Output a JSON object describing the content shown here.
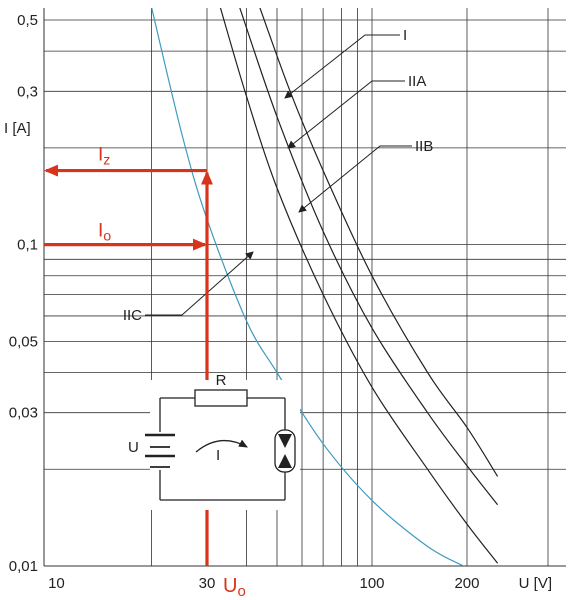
{
  "chart_data": {
    "type": "line",
    "xscale": "log",
    "yscale": "log",
    "xlim": [
      10,
      250
    ],
    "ylim": [
      0.01,
      0.55
    ],
    "xlabel": "U [V]",
    "ylabel": "I [A]",
    "x_ticks": [
      {
        "value": 10,
        "label": "10"
      },
      {
        "value": 30,
        "label": "30"
      },
      {
        "value": 100,
        "label": "100"
      },
      {
        "value": 200,
        "label": "200"
      }
    ],
    "y_ticks": [
      {
        "value": 0.01,
        "label": "0,01"
      },
      {
        "value": 0.03,
        "label": "0,03"
      },
      {
        "value": 0.05,
        "label": "0,05"
      },
      {
        "value": 0.1,
        "label": "0,1"
      },
      {
        "value": 0.3,
        "label": "0,3"
      },
      {
        "value": 0.5,
        "label": "0,5"
      }
    ],
    "grid": true,
    "series": [
      {
        "name": "IIC",
        "color": "#3f9bbf",
        "points": [
          [
            20,
            0.55
          ],
          [
            25,
            0.22
          ],
          [
            30,
            0.12
          ],
          [
            40,
            0.058
          ],
          [
            50,
            0.04
          ],
          [
            70,
            0.024
          ],
          [
            100,
            0.016
          ],
          [
            150,
            0.0115
          ],
          [
            195,
            0.01
          ]
        ]
      },
      {
        "name": "IIB",
        "color": "#222222",
        "points": [
          [
            33,
            0.55
          ],
          [
            40,
            0.29
          ],
          [
            50,
            0.15
          ],
          [
            70,
            0.07
          ],
          [
            100,
            0.036
          ],
          [
            150,
            0.02
          ],
          [
            200,
            0.0135
          ],
          [
            250,
            0.0102
          ]
        ]
      },
      {
        "name": "IIA",
        "color": "#222222",
        "points": [
          [
            38,
            0.55
          ],
          [
            50,
            0.25
          ],
          [
            70,
            0.11
          ],
          [
            100,
            0.055
          ],
          [
            150,
            0.03
          ],
          [
            200,
            0.0205
          ],
          [
            250,
            0.0155
          ]
        ]
      },
      {
        "name": "I",
        "color": "#222222",
        "points": [
          [
            44,
            0.55
          ],
          [
            55,
            0.3
          ],
          [
            70,
            0.17
          ],
          [
            100,
            0.08
          ],
          [
            150,
            0.04
          ],
          [
            200,
            0.027
          ],
          [
            250,
            0.019
          ]
        ]
      }
    ],
    "annotations": {
      "Iz": {
        "label_main": "I",
        "label_sub": "z",
        "value": 0.17
      },
      "Io": {
        "label_main": "I",
        "label_sub": "o",
        "value": 0.1
      },
      "Uo": {
        "label_main": "U",
        "label_sub": "o",
        "value": 30
      },
      "color": "#d8341c"
    },
    "circuit": {
      "resistor_label": "R",
      "source_label": "U",
      "current_label": "I"
    }
  }
}
